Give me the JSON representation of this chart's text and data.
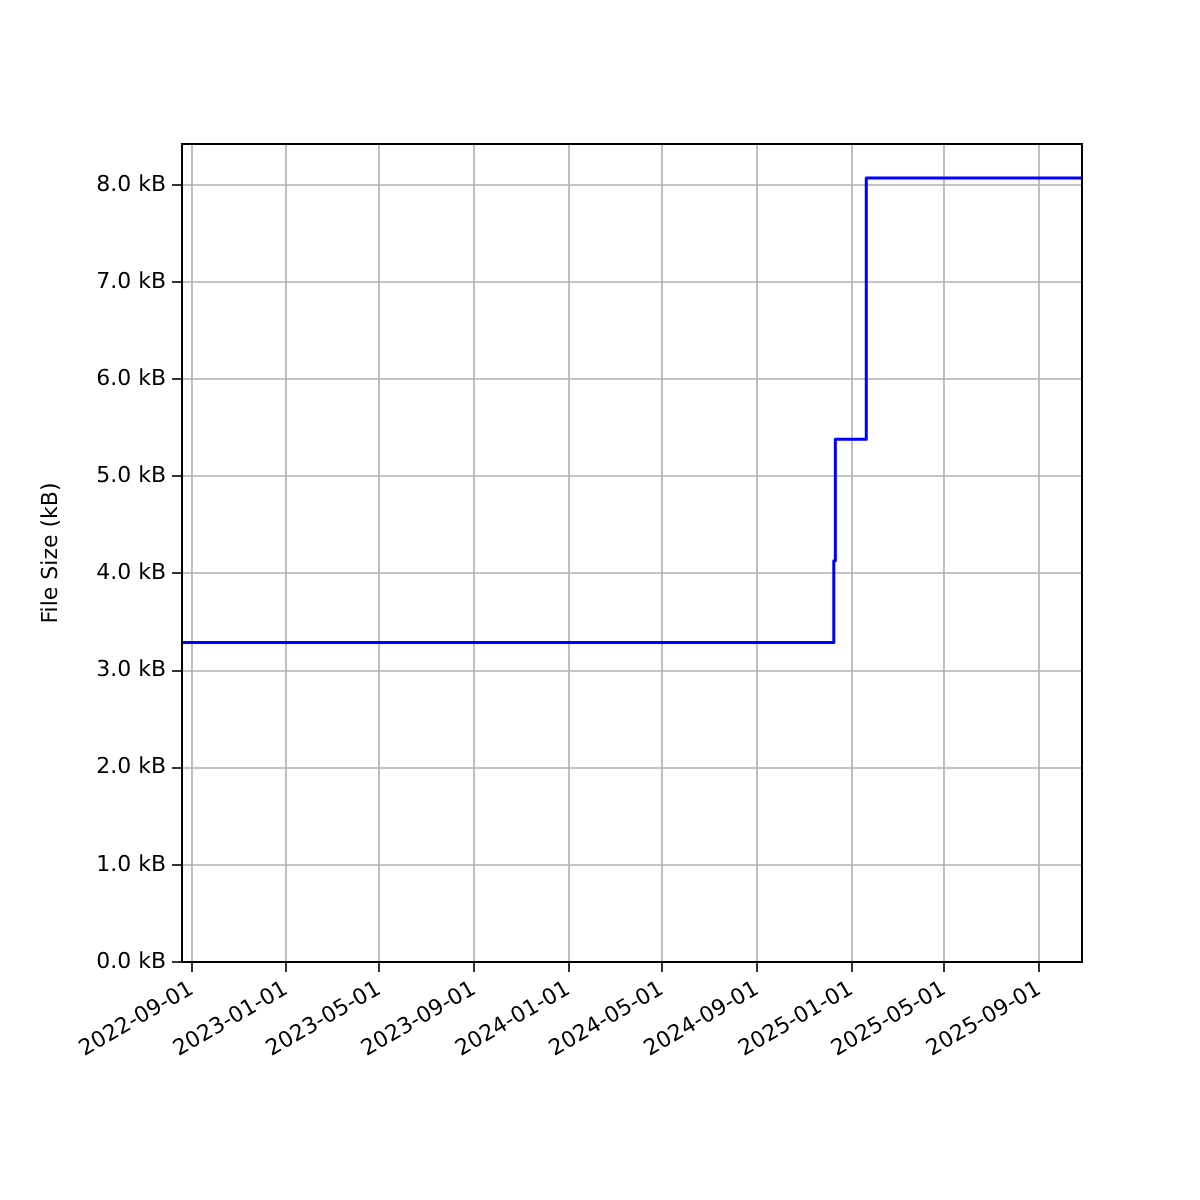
{
  "chart_data": {
    "type": "step",
    "ylabel": "File Size (kB)",
    "x": [
      "2022-08-19",
      "2024-12-09",
      "2024-12-11",
      "2025-01-20",
      "2025-10-26"
    ],
    "series": [
      {
        "color": "#0000ff",
        "values": [
          3.29,
          4.13,
          5.38,
          8.07,
          8.07
        ]
      }
    ],
    "xlim": [
      "2022-08-19",
      "2025-10-26"
    ],
    "xticks": [
      "2022-09-01",
      "2023-01-01",
      "2023-05-01",
      "2023-09-01",
      "2024-01-01",
      "2024-05-01",
      "2024-09-01",
      "2025-01-01",
      "2025-05-01",
      "2025-09-01"
    ],
    "ylim": [
      0,
      8.42
    ],
    "yticks": [
      {
        "value": 0,
        "label": "0.0 kB"
      },
      {
        "value": 1,
        "label": "1.0 kB"
      },
      {
        "value": 2,
        "label": "2.0 kB"
      },
      {
        "value": 3,
        "label": "3.0 kB"
      },
      {
        "value": 4,
        "label": "4.0 kB"
      },
      {
        "value": 5,
        "label": "5.0 kB"
      },
      {
        "value": 6,
        "label": "6.0 kB"
      },
      {
        "value": 7,
        "label": "7.0 kB"
      },
      {
        "value": 8,
        "label": "8.0 kB"
      }
    ],
    "grid": true
  }
}
